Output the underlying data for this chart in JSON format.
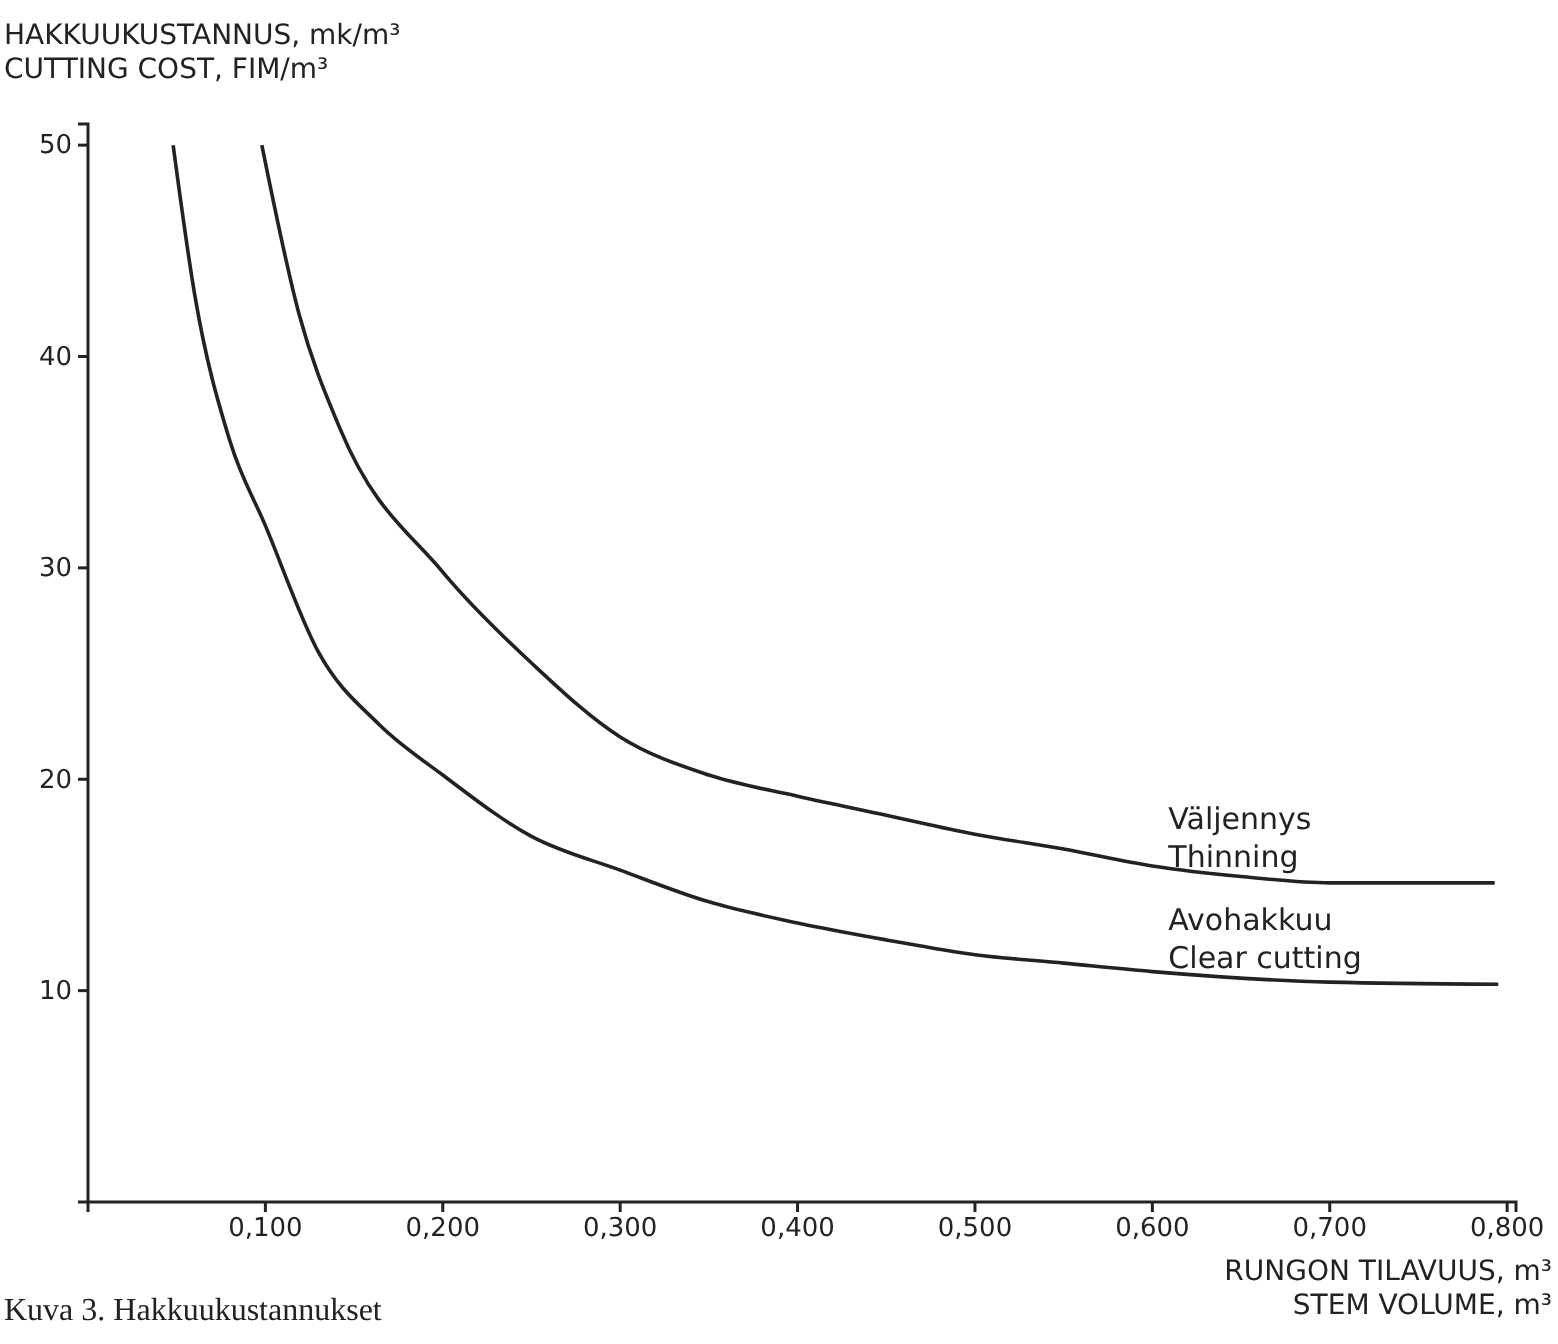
{
  "chart_data": {
    "type": "line",
    "ylabel": "HAKKUUKUSTANNUS, mk/m³\nCUTTING COST, FIM/m³",
    "xlabel": "RUNGON TILAVUUS, m³\nSTEM VOLUME, m³",
    "annotations": [
      "Kuva 3. Hakkuukustannukset"
    ],
    "xlim": [
      0,
      0.805
    ],
    "ylim": [
      0,
      51
    ],
    "xticks": [
      {
        "value": 0.1,
        "label": "0,100"
      },
      {
        "value": 0.2,
        "label": "0,200"
      },
      {
        "value": 0.3,
        "label": "0,300"
      },
      {
        "value": 0.4,
        "label": "0,400"
      },
      {
        "value": 0.5,
        "label": "0,500"
      },
      {
        "value": 0.6,
        "label": "0,600"
      },
      {
        "value": 0.7,
        "label": "0,700"
      },
      {
        "value": 0.8,
        "label": "0,800"
      }
    ],
    "yticks": [
      10,
      20,
      30,
      40,
      50
    ],
    "grid": false,
    "legend": false,
    "marker": "none",
    "line_style": "solid",
    "series": [
      {
        "name": "Väljennys\nThinning",
        "color": "#222222",
        "x": [
          0.098,
          0.119,
          0.142,
          0.2,
          0.25,
          0.3,
          0.35,
          0.4,
          0.45,
          0.5,
          0.55,
          0.6,
          0.65,
          0.7,
          0.793
        ],
        "values": [
          50,
          42,
          36.6,
          29.8,
          25.5,
          22.0,
          20.2,
          19.2,
          18.3,
          17.4,
          16.7,
          15.9,
          15.4,
          15.1,
          15.1
        ]
      },
      {
        "name": "Avohakkuu\nClear cutting",
        "color": "#222222",
        "x": [
          0.048,
          0.06,
          0.08,
          0.1,
          0.13,
          0.164,
          0.2,
          0.25,
          0.3,
          0.35,
          0.4,
          0.45,
          0.5,
          0.55,
          0.6,
          0.7,
          0.795
        ],
        "values": [
          50,
          43,
          36,
          32,
          26,
          22.6,
          20.2,
          17.3,
          15.7,
          14.2,
          13.2,
          12.4,
          11.7,
          11.3,
          10.9,
          10.4,
          10.3
        ]
      }
    ]
  }
}
